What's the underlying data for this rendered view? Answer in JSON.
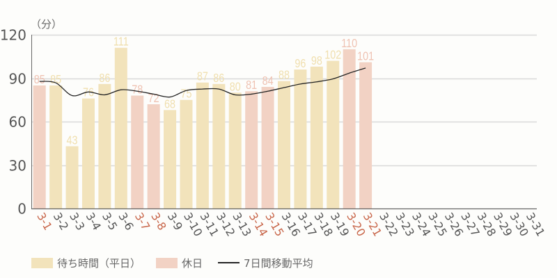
{
  "chart_data": {
    "type": "bar",
    "title": "",
    "unit_label": "（分）",
    "xlabel": "",
    "ylabel": "（分）",
    "ylim": [
      0,
      120
    ],
    "yticks": [
      0,
      30,
      60,
      90,
      120
    ],
    "grid": true,
    "legend_position": "bottom-left",
    "categories": [
      "3-1",
      "3-2",
      "3-3",
      "3-4",
      "3-5",
      "3-6",
      "3-7",
      "3-8",
      "3-9",
      "3-10",
      "3-11",
      "3-12",
      "3-13",
      "3-14",
      "3-15",
      "3-16",
      "3-17",
      "3-18",
      "3-19",
      "3-20",
      "3-21",
      "3-22",
      "3-23",
      "3-24",
      "3-25",
      "3-26",
      "3-27",
      "3-28",
      "3-29",
      "3-30",
      "3-31"
    ],
    "holidays": [
      "3-1",
      "3-7",
      "3-8",
      "3-14",
      "3-15",
      "3-20",
      "3-21"
    ],
    "series": [
      {
        "name": "待ち時間（平日）",
        "type": "bar",
        "color": "#f2e3bb",
        "values": [
          null,
          85,
          43,
          76,
          86,
          111,
          null,
          null,
          68,
          75,
          87,
          86,
          80,
          null,
          null,
          88,
          96,
          98,
          102,
          null,
          null,
          null,
          null,
          null,
          null,
          null,
          null,
          null,
          null,
          null,
          null
        ]
      },
      {
        "name": "休日",
        "type": "bar",
        "color": "#f2d2c4",
        "values": [
          85,
          null,
          null,
          null,
          null,
          null,
          78,
          72,
          null,
          null,
          null,
          null,
          null,
          81,
          84,
          null,
          null,
          null,
          null,
          110,
          101,
          null,
          null,
          null,
          null,
          null,
          null,
          null,
          null,
          null,
          null
        ]
      },
      {
        "name": "7日間移動平均",
        "type": "line",
        "color": "#222222",
        "values": [
          87.8,
          86.8,
          78,
          80.5,
          78.5,
          82,
          81,
          79,
          77,
          81.5,
          82.5,
          82.5,
          78.5,
          79,
          81,
          83.5,
          86,
          87.5,
          89.5,
          93.5,
          97,
          null,
          null,
          null,
          null,
          null,
          null,
          null,
          null,
          null,
          null
        ]
      }
    ],
    "data_labels": [
      85,
      85,
      43,
      76,
      86,
      111,
      78,
      72,
      68,
      75,
      87,
      86,
      80,
      81,
      84,
      88,
      96,
      98,
      102,
      110,
      101
    ]
  },
  "legend": {
    "weekday": "待ち時間（平日）",
    "holiday": "休日",
    "moving_avg": "7日間移動平均"
  },
  "colors": {
    "weekday_bar": "#f2e3bb",
    "holiday_bar": "#f2d2c4",
    "weekday_label": "#f0dfae",
    "holiday_label": "#efc2b2",
    "holiday_tick": "#c8664a",
    "weekday_tick": "#555555",
    "grid": "#d9d9d9",
    "axis": "#555555",
    "line": "#222222"
  }
}
